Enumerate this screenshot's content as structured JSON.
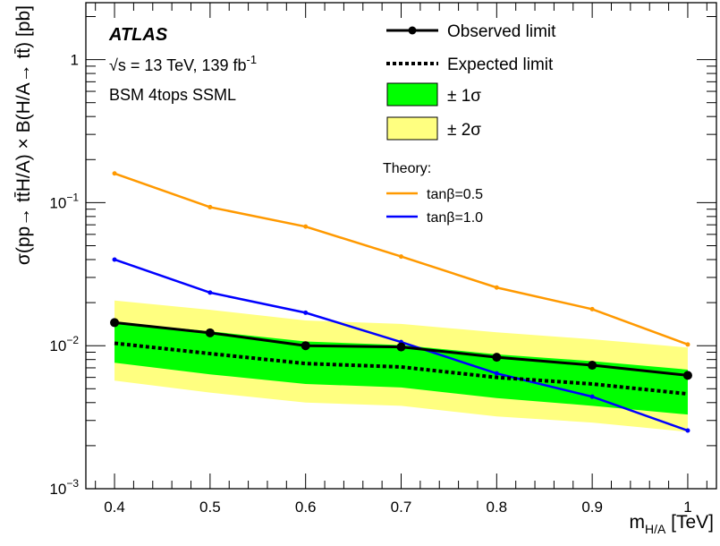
{
  "chart_data": {
    "type": "line",
    "xlabel": "m",
    "xlabel_sub": "H/A",
    "xlabel_unit": " [TeV]",
    "ylabel": "σ(pp→ tt̄H/A) × B(H/A→ tt̄) [pb]",
    "yscale": "log",
    "xlim": [
      0.37,
      1.03
    ],
    "ylim": [
      0.001,
      2.5
    ],
    "x": [
      0.4,
      0.5,
      0.6,
      0.7,
      0.8,
      0.9,
      1.0
    ],
    "x_tick_labels": [
      "0.4",
      "0.5",
      "0.6",
      "0.7",
      "0.8",
      "0.9",
      "1"
    ],
    "y_ticks": [
      {
        "value": 0.001,
        "base": "10",
        "exp": "−3"
      },
      {
        "value": 0.01,
        "base": "10",
        "exp": "−2"
      },
      {
        "value": 0.1,
        "base": "10",
        "exp": "−1"
      },
      {
        "value": 1,
        "base": "1",
        "exp": ""
      }
    ],
    "series": [
      {
        "name": "Observed limit",
        "style": "solid-markers",
        "color": "#000000",
        "values": [
          0.0145,
          0.0123,
          0.01,
          0.0098,
          0.0083,
          0.0073,
          0.0062
        ]
      },
      {
        "name": "Expected limit",
        "style": "dotted",
        "color": "#000000",
        "values": [
          0.0104,
          0.0088,
          0.0075,
          0.0071,
          0.006,
          0.0054,
          0.0046
        ]
      },
      {
        "name": "tanβ=0.5",
        "style": "solid-dots",
        "color": "#ff9900",
        "values": [
          0.16,
          0.093,
          0.068,
          0.042,
          0.0255,
          0.018,
          0.0102
        ]
      },
      {
        "name": "tanβ=1.0",
        "style": "solid-dots",
        "color": "#0000ff",
        "values": [
          0.04,
          0.0235,
          0.017,
          0.0106,
          0.0064,
          0.0044,
          0.00255
        ]
      }
    ],
    "bands": [
      {
        "name": "± 1σ",
        "color": "#00ff00",
        "lower": [
          0.0076,
          0.0063,
          0.0054,
          0.0051,
          0.0043,
          0.0038,
          0.0033
        ],
        "upper": [
          0.0146,
          0.0126,
          0.0107,
          0.0101,
          0.0087,
          0.0078,
          0.0068
        ]
      },
      {
        "name": "± 2σ",
        "color": "#ffff80",
        "lower": [
          0.0057,
          0.0047,
          0.004,
          0.0038,
          0.0032,
          0.0029,
          0.0025
        ],
        "upper": [
          0.0207,
          0.0178,
          0.015,
          0.0142,
          0.0124,
          0.0111,
          0.0097
        ]
      }
    ]
  },
  "annotations": {
    "experiment": "ATLAS",
    "energy_root": "√s",
    "energy_text": " = 13 TeV, 139 fb",
    "energy_sup": "-1",
    "analysis": "BSM 4tops SSML"
  },
  "legend": {
    "observed": "Observed limit",
    "expected": "Expected limit",
    "one_sigma": "± 1σ",
    "two_sigma": "± 2σ",
    "theory_heading": "Theory:",
    "tanb05": "tanβ=0.5",
    "tanb10": "tanβ=1.0"
  }
}
